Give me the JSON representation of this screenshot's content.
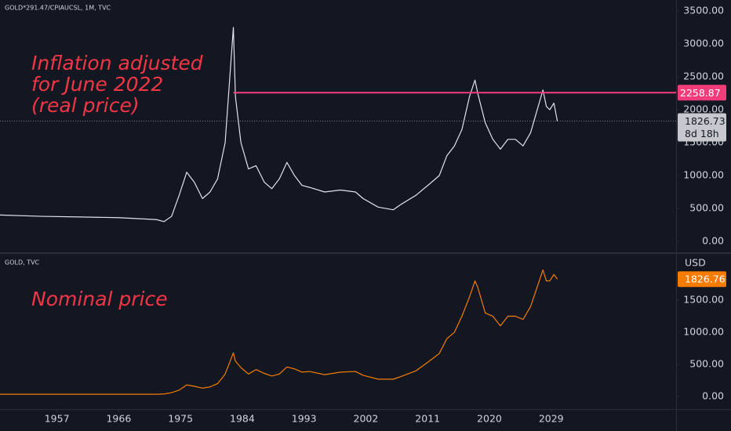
{
  "chart_data": [
    {
      "type": "line",
      "title": "GOLD*291.47/CPIAUCSL, 1M, TVC",
      "annotation": [
        "Inflation adjusted",
        "for June 2022",
        "(real price)"
      ],
      "color": "#e0e3eb",
      "x": [
        1948.6,
        1954.8,
        1960.4,
        1966.0,
        1971.5,
        1972.6,
        1973.7,
        1974.8,
        1975.9,
        1977.0,
        1978.2,
        1979.3,
        1980.4,
        1981.5,
        1982.7,
        1983.0,
        1983.8,
        1984.9,
        1986.0,
        1987.2,
        1988.3,
        1989.4,
        1990.5,
        1991.6,
        1992.7,
        1993.8,
        1996.0,
        1998.3,
        2000.5,
        2001.6,
        2003.8,
        2006.0,
        2007.1,
        2009.3,
        2011.6,
        2012.7,
        2013.8,
        2014.9,
        2016.0,
        2017.1,
        2017.9,
        2018.3,
        2019.4,
        2020.5,
        2021.6,
        2022.7,
        2023.8,
        2024.9,
        2026.0,
        2027.8,
        2028.3,
        2028.8,
        2029.4,
        2029.9
      ],
      "values": [
        400,
        380,
        370,
        360,
        330,
        300,
        380,
        700,
        1050,
        900,
        650,
        750,
        950,
        1500,
        3250,
        2200,
        1500,
        1100,
        1150,
        900,
        800,
        950,
        1200,
        1000,
        850,
        820,
        750,
        780,
        750,
        650,
        520,
        480,
        560,
        700,
        900,
        1000,
        1300,
        1450,
        1700,
        2200,
        2450,
        2250,
        1800,
        1550,
        1400,
        1550,
        1550,
        1450,
        1650,
        2300,
        2050,
        2000,
        2100,
        1826.73
      ],
      "hline": 2258.87,
      "hline_color": "#f23d7a",
      "countdown": "8d 18h",
      "xlim": [
        1948.7,
        2047.2
      ],
      "ylim": [
        -167,
        3667
      ],
      "yticks": [
        {
          "value": 0,
          "label": "0.00"
        },
        {
          "value": 500,
          "label": "500.00"
        },
        {
          "value": 1000,
          "label": "1000.00"
        },
        {
          "value": 1500,
          "label": "1500.00"
        },
        {
          "value": 2000,
          "label": "2000.00"
        },
        {
          "value": 2500,
          "label": "2500.00"
        },
        {
          "value": 3000,
          "label": "3000.00"
        },
        {
          "value": 3500,
          "label": "3500.00"
        }
      ]
    },
    {
      "type": "line",
      "title": "GOLD, TVC",
      "annotation": [
        "Nominal price"
      ],
      "color": "#f57c00",
      "currency": "USD",
      "x": [
        1948.6,
        1954.8,
        1960.4,
        1966.0,
        1971.5,
        1972.6,
        1973.7,
        1974.8,
        1975.9,
        1977.0,
        1978.2,
        1979.3,
        1980.4,
        1981.5,
        1982.7,
        1983.0,
        1983.8,
        1984.9,
        1986.0,
        1987.2,
        1988.3,
        1989.4,
        1990.5,
        1991.6,
        1992.7,
        1993.8,
        1996.0,
        1998.3,
        2000.5,
        2001.6,
        2003.8,
        2006.0,
        2007.1,
        2009.3,
        2011.6,
        2012.7,
        2013.8,
        2014.9,
        2016.0,
        2017.1,
        2017.9,
        2018.3,
        2019.4,
        2020.5,
        2021.6,
        2022.7,
        2023.8,
        2024.9,
        2026.0,
        2027.8,
        2028.3,
        2028.8,
        2029.4,
        2029.9
      ],
      "values": [
        35,
        35,
        35,
        35,
        35,
        40,
        60,
        100,
        180,
        160,
        130,
        150,
        200,
        350,
        680,
        550,
        450,
        350,
        420,
        360,
        320,
        350,
        460,
        430,
        380,
        390,
        340,
        380,
        390,
        330,
        270,
        270,
        310,
        400,
        580,
        670,
        900,
        1000,
        1250,
        1550,
        1800,
        1700,
        1300,
        1250,
        1100,
        1250,
        1250,
        1200,
        1400,
        1970,
        1800,
        1800,
        1900,
        1826.76
      ],
      "xlim": [
        1948.7,
        2047.2
      ],
      "xticks": [
        1957,
        1966,
        1975,
        1984,
        1993,
        2002,
        2011,
        2020,
        2029
      ],
      "ylim": [
        -195,
        2220
      ],
      "yticks": [
        {
          "value": 0,
          "label": "0.00"
        },
        {
          "value": 500,
          "label": "500.00"
        },
        {
          "value": 1000,
          "label": "1000.00"
        },
        {
          "value": 1500,
          "label": "1500.00"
        }
      ]
    }
  ]
}
